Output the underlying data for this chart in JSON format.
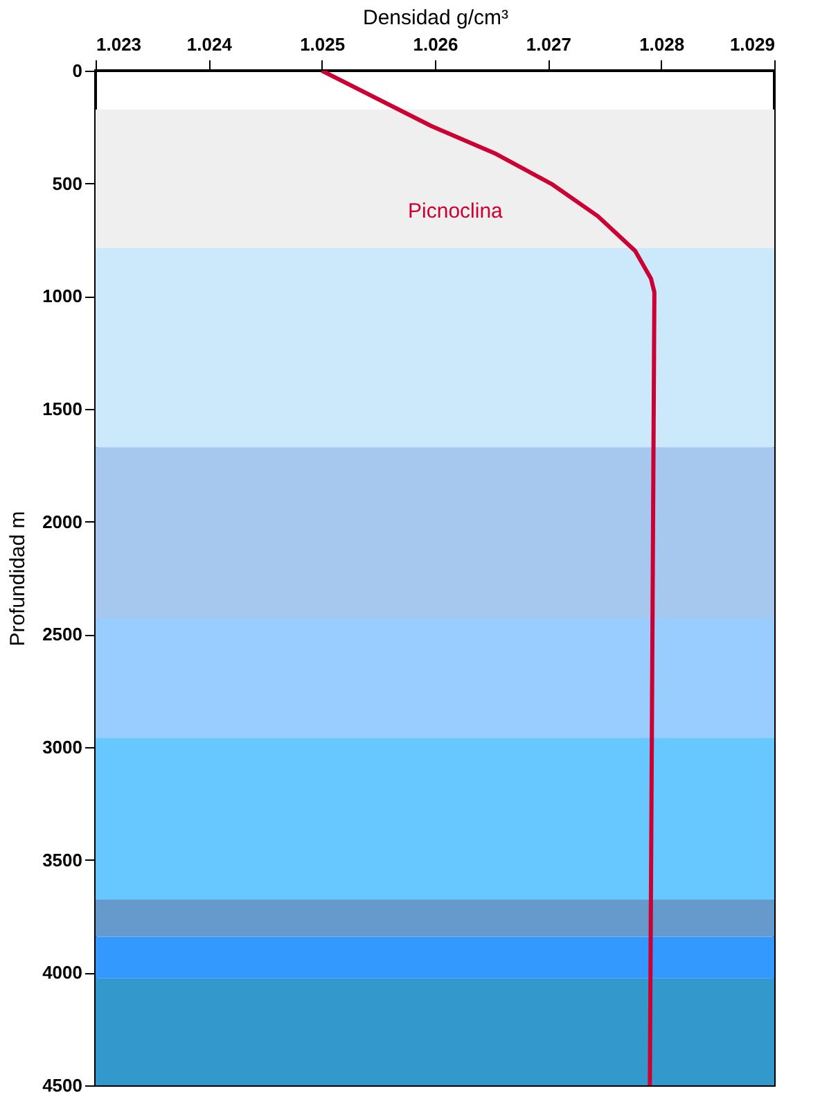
{
  "chart_data": {
    "type": "line",
    "xlabel": "Densidad   g/cm³",
    "ylabel": "Profundidad   m",
    "x": [
      1.025,
      1.02597,
      1.02654,
      1.02703,
      1.02744,
      1.02777,
      1.02791,
      1.02794,
      1.0279
    ],
    "series": [
      {
        "color": "#cc0033",
        "values": [
          0,
          246,
          369,
          502,
          645,
          799,
          922,
          983,
          4500
        ]
      }
    ],
    "xlim": [
      1.023,
      1.029
    ],
    "xticks": [
      1.023,
      1.024,
      1.025,
      1.026,
      1.027,
      1.028,
      1.029
    ],
    "ylim": [
      4500,
      0
    ],
    "yticks": [
      0,
      500,
      1000,
      1500,
      2000,
      2500,
      3000,
      3500,
      4000,
      4500
    ],
    "grid": false,
    "marker": "none",
    "line_style": "solid",
    "annotations": [
      "Picnoclina"
    ],
    "bands": [
      {
        "axis": "y",
        "from": 172,
        "to": 787,
        "color": "#efefef"
      },
      {
        "axis": "y",
        "from": 787,
        "to": 1670,
        "color": "#cce9fb"
      },
      {
        "axis": "y",
        "from": 1670,
        "to": 2428,
        "color": "#a6c8ee"
      },
      {
        "axis": "y",
        "from": 2428,
        "to": 2960,
        "color": "#99ccff"
      },
      {
        "axis": "y",
        "from": 2960,
        "to": 3676,
        "color": "#66c8ff"
      },
      {
        "axis": "y",
        "from": 3676,
        "to": 3841,
        "color": "#6699cc"
      },
      {
        "axis": "y",
        "from": 3841,
        "to": 4026,
        "color": "#3399ff"
      },
      {
        "axis": "y",
        "from": 4026,
        "to": 4500,
        "color": "#3399cc"
      }
    ]
  }
}
